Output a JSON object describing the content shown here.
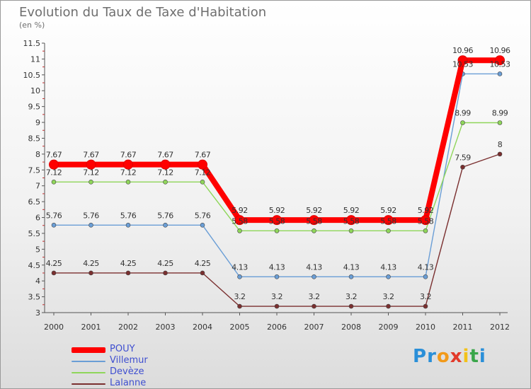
{
  "header": {
    "title": "Evolution du Taux de Taxe d'Habitation",
    "subtitle": "(en %)"
  },
  "chart_data": {
    "type": "line",
    "title": "Evolution du Taux de Taxe d'Habitation",
    "subtitle": "(en %)",
    "xlabel": "",
    "ylabel": "",
    "categories": [
      "2000",
      "2001",
      "2002",
      "2003",
      "2004",
      "2005",
      "2006",
      "2007",
      "2008",
      "2009",
      "2010",
      "2011",
      "2012"
    ],
    "ylim": [
      3,
      11.5
    ],
    "y_ticks": [
      "3",
      "3.5",
      "4",
      "4.5",
      "5",
      "5.5",
      "6",
      "6.5",
      "7",
      "7.5",
      "8",
      "8.5",
      "9",
      "9.5",
      "10",
      "10.5",
      "11",
      "11.5"
    ],
    "grid": false,
    "legend_position": "bottom-left",
    "series": [
      {
        "name": "POUY",
        "color": "#ff0000",
        "values": [
          7.67,
          7.67,
          7.67,
          7.67,
          7.67,
          5.92,
          5.92,
          5.92,
          5.92,
          5.92,
          5.92,
          10.96,
          10.96
        ],
        "labels": [
          "7.67",
          "7.67",
          "7.67",
          "7.67",
          "7.67",
          "5.92",
          "5.92",
          "5.92",
          "5.92",
          "5.92",
          "5.92",
          "10.96",
          "10.96"
        ]
      },
      {
        "name": "Villemur",
        "color": "#6a9ed6",
        "values": [
          5.76,
          5.76,
          5.76,
          5.76,
          5.76,
          4.13,
          4.13,
          4.13,
          4.13,
          4.13,
          4.13,
          10.53,
          10.53
        ],
        "labels": [
          "5.76",
          "5.76",
          "5.76",
          "5.76",
          "5.76",
          "4.13",
          "4.13",
          "4.13",
          "4.13",
          "4.13",
          "4.13",
          "10.53",
          "10.53"
        ]
      },
      {
        "name": "Devèze",
        "color": "#8fd65a",
        "values": [
          7.12,
          7.12,
          7.12,
          7.12,
          7.12,
          5.58,
          5.58,
          5.58,
          5.58,
          5.58,
          5.58,
          8.99,
          8.99
        ],
        "labels": [
          "7.12",
          "7.12",
          "7.12",
          "7.12",
          "7.12",
          "5.58",
          "5.58",
          "5.58",
          "5.58",
          "5.58",
          "5.58",
          "8.99",
          "8.99"
        ]
      },
      {
        "name": "Lalanne",
        "color": "#7a2f2f",
        "values": [
          4.25,
          4.25,
          4.25,
          4.25,
          4.25,
          3.2,
          3.2,
          3.2,
          3.2,
          3.2,
          3.2,
          7.59,
          8
        ],
        "labels": [
          "4.25",
          "4.25",
          "4.25",
          "4.25",
          "4.25",
          "3.2",
          "3.2",
          "3.2",
          "3.2",
          "3.2",
          "3.2",
          "7.59",
          "8"
        ]
      }
    ]
  },
  "legend": {
    "items": [
      {
        "label": "POUY",
        "color": "#ff0000"
      },
      {
        "label": "Villemur",
        "color": "#6a9ed6"
      },
      {
        "label": "Devèze",
        "color": "#8fd65a"
      },
      {
        "label": "Lalanne",
        "color": "#7a2f2f"
      }
    ]
  },
  "logo": {
    "letters": [
      "P",
      "r",
      "o",
      "x",
      "i",
      "t",
      "i"
    ],
    "colors": [
      "#2a8fd8",
      "#2a8fd8",
      "#f29a1a",
      "#e23a2a",
      "#f2c21a",
      "#3aa64a",
      "#2a8fd8"
    ]
  }
}
